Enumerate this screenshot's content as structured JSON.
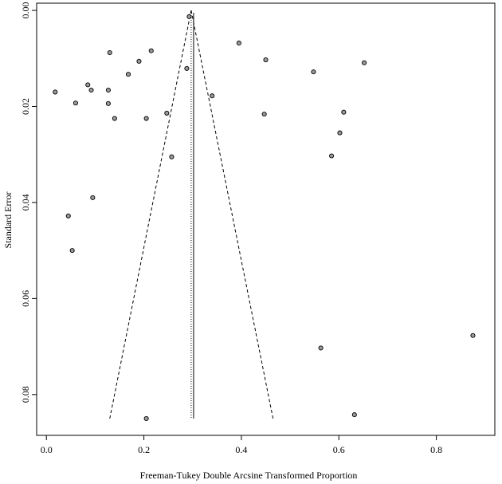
{
  "chart_data": {
    "type": "scatter",
    "title": "",
    "xlabel": "Freeman-Tukey Double Arcsine Transformed Proportion",
    "ylabel": "Standard Error",
    "xlim": [
      -0.02,
      0.92
    ],
    "ylim": [
      0.0885,
      -0.0015
    ],
    "y_reversed": true,
    "grid": false,
    "legend": "none",
    "x_ticks": [
      {
        "value": 0.0,
        "label": "0.0"
      },
      {
        "value": 0.2,
        "label": "0.2"
      },
      {
        "value": 0.4,
        "label": "0.4"
      },
      {
        "value": 0.6,
        "label": "0.6"
      },
      {
        "value": 0.8,
        "label": "0.8"
      }
    ],
    "y_ticks": [
      {
        "value": 0.0,
        "label": "0.00"
      },
      {
        "value": 0.02,
        "label": "0.02"
      },
      {
        "value": 0.04,
        "label": "0.04"
      },
      {
        "value": 0.06,
        "label": "0.06"
      },
      {
        "value": 0.08,
        "label": "0.08"
      }
    ],
    "points": [
      {
        "x": 0.018,
        "y": 0.017
      },
      {
        "x": 0.06,
        "y": 0.0193
      },
      {
        "x": 0.085,
        "y": 0.0155
      },
      {
        "x": 0.092,
        "y": 0.0166
      },
      {
        "x": 0.13,
        "y": 0.0088
      },
      {
        "x": 0.127,
        "y": 0.0166
      },
      {
        "x": 0.127,
        "y": 0.0194
      },
      {
        "x": 0.14,
        "y": 0.0225
      },
      {
        "x": 0.168,
        "y": 0.0133
      },
      {
        "x": 0.19,
        "y": 0.0106
      },
      {
        "x": 0.215,
        "y": 0.0084
      },
      {
        "x": 0.205,
        "y": 0.0225
      },
      {
        "x": 0.247,
        "y": 0.0214
      },
      {
        "x": 0.257,
        "y": 0.0305
      },
      {
        "x": 0.288,
        "y": 0.0121
      },
      {
        "x": 0.293,
        "y": 0.0013
      },
      {
        "x": 0.34,
        "y": 0.0178
      },
      {
        "x": 0.395,
        "y": 0.0068
      },
      {
        "x": 0.45,
        "y": 0.0103
      },
      {
        "x": 0.447,
        "y": 0.0216
      },
      {
        "x": 0.548,
        "y": 0.0128
      },
      {
        "x": 0.585,
        "y": 0.0303
      },
      {
        "x": 0.602,
        "y": 0.0255
      },
      {
        "x": 0.61,
        "y": 0.0212
      },
      {
        "x": 0.652,
        "y": 0.0109
      },
      {
        "x": 0.095,
        "y": 0.039
      },
      {
        "x": 0.045,
        "y": 0.0428
      },
      {
        "x": 0.053,
        "y": 0.05
      },
      {
        "x": 0.563,
        "y": 0.0703
      },
      {
        "x": 0.875,
        "y": 0.0677
      },
      {
        "x": 0.205,
        "y": 0.085
      },
      {
        "x": 0.632,
        "y": 0.0842
      }
    ],
    "funnel": {
      "apex": {
        "x": 0.297,
        "y": 0.0
      },
      "left_base": {
        "x": 0.13,
        "y": 0.085
      },
      "right_base": {
        "x": 0.465,
        "y": 0.085
      }
    },
    "reference_lines": [
      {
        "x": 0.297,
        "style": "dotted",
        "y_from": 0.0,
        "y_to": 0.085
      },
      {
        "x": 0.302,
        "style": "solid",
        "y_from": 0.0005,
        "y_to": 0.085
      }
    ]
  }
}
